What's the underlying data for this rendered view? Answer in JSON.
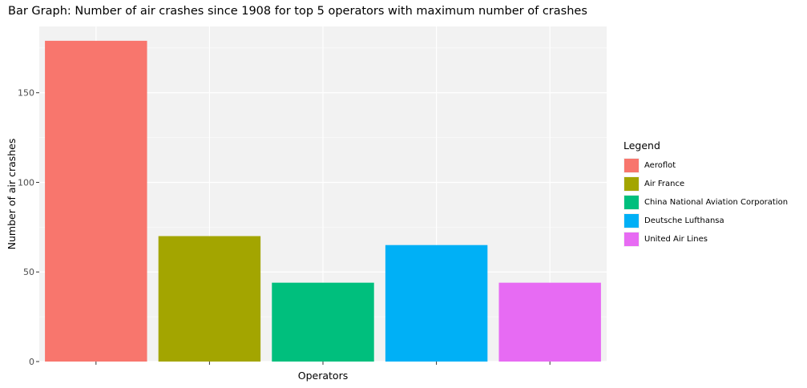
{
  "chart_data": {
    "type": "bar",
    "title": "Bar Graph: Number of air crashes since 1908 for top 5 operators with maximum number of crashes",
    "xlabel": "Operators",
    "ylabel": "Number of air crashes",
    "categories": [
      "Aeroflot",
      "Air France",
      "China National Aviation Corporation",
      "Deutsche Lufthansa",
      "United Air Lines"
    ],
    "values": [
      179,
      70,
      44,
      65,
      44
    ],
    "colors": [
      "#F8766D",
      "#A3A500",
      "#00BF7D",
      "#00B0F6",
      "#E76BF3"
    ],
    "ylim": [
      0,
      187
    ],
    "y_ticks": [
      0,
      50,
      100,
      150
    ],
    "grid": true,
    "legend": {
      "title": "Legend",
      "position": "right",
      "entries": [
        "Aeroflot",
        "Air France",
        "China National Aviation Corporation",
        "Deutsche Lufthansa",
        "United Air Lines"
      ]
    }
  }
}
